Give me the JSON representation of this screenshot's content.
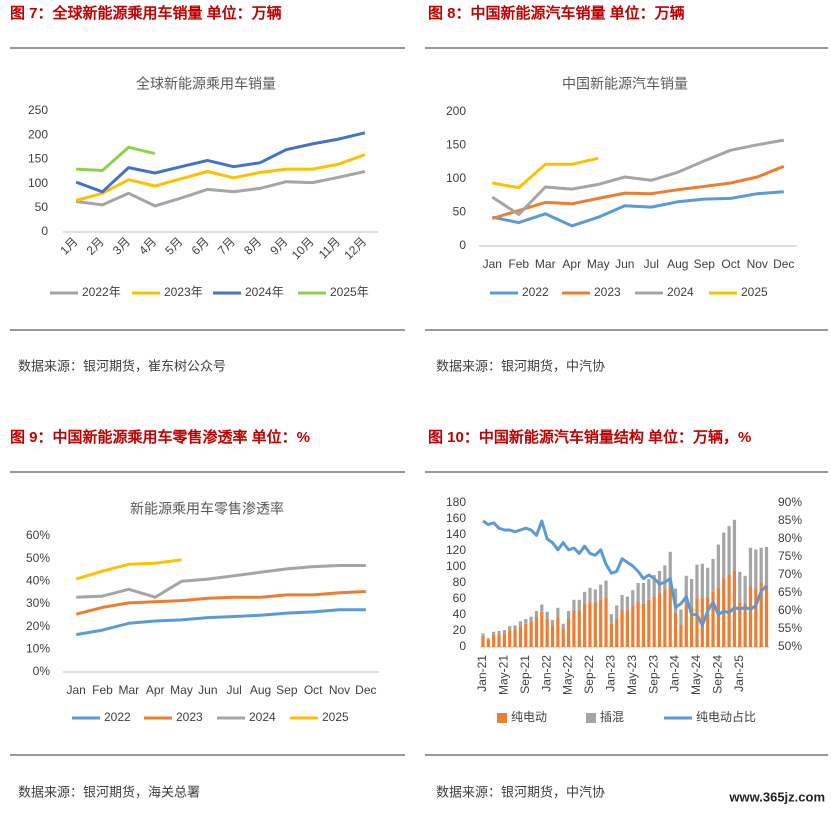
{
  "watermark": "www.365jz.com",
  "chart_data": [
    {
      "type": "line",
      "figure_title": "图 7：全球新能源乘用车销量   单位：万辆",
      "title": "全球新能源乘用车销量",
      "source": "数据来源：银河期货，崔东树公众号",
      "categories": [
        "1月",
        "2月",
        "3月",
        "4月",
        "5月",
        "6月",
        "7月",
        "8月",
        "9月",
        "10月",
        "11月",
        "12月"
      ],
      "ylim": [
        0,
        250
      ],
      "yticks": [
        0,
        50,
        100,
        150,
        200,
        250
      ],
      "grid": false,
      "series": [
        {
          "name": "2022年",
          "color": "#a5a5a5",
          "values": [
            63,
            56,
            80,
            54,
            70,
            88,
            83,
            90,
            104,
            102,
            113,
            125
          ]
        },
        {
          "name": "2023年",
          "color": "#ffc000",
          "values": [
            65,
            80,
            108,
            95,
            110,
            125,
            112,
            123,
            130,
            130,
            140,
            160
          ]
        },
        {
          "name": "2024年",
          "color": "#4472c4",
          "values": [
            103,
            83,
            133,
            122,
            135,
            148,
            135,
            143,
            170,
            182,
            192,
            205
          ]
        },
        {
          "name": "2025年",
          "color": "#8fd14f",
          "values": [
            130,
            127,
            175,
            162,
            null,
            null,
            null,
            null,
            null,
            null,
            null,
            null
          ]
        }
      ]
    },
    {
      "type": "line",
      "figure_title": "图 8：中国新能源汽车销量   单位：万辆",
      "title": "中国新能源汽车销量",
      "source": "数据来源：银河期货，中汽协",
      "categories": [
        "Jan",
        "Feb",
        "Mar",
        "Apr",
        "May",
        "Jun",
        "Jul",
        "Aug",
        "Sep",
        "Oct",
        "Nov",
        "Dec"
      ],
      "ylim": [
        0,
        200
      ],
      "yticks": [
        0,
        50,
        100,
        150,
        200
      ],
      "grid": false,
      "series": [
        {
          "name": "2022",
          "color": "#5b9bd5",
          "values": [
            43,
            35,
            48,
            30,
            43,
            60,
            58,
            66,
            70,
            71,
            78,
            81
          ]
        },
        {
          "name": "2023",
          "color": "#ed7d31",
          "values": [
            41,
            53,
            65,
            63,
            71,
            79,
            78,
            84,
            89,
            94,
            103,
            119
          ]
        },
        {
          "name": "2024",
          "color": "#a5a5a5",
          "values": [
            73,
            47,
            88,
            85,
            92,
            103,
            98,
            110,
            127,
            143,
            151,
            158
          ]
        },
        {
          "name": "2025",
          "color": "#ffc000",
          "values": [
            94,
            87,
            122,
            122,
            131,
            null,
            null,
            null,
            null,
            null,
            null,
            null
          ]
        }
      ]
    },
    {
      "type": "line",
      "figure_title": "图 9：中国新能源乘用车零售渗透率   单位：%",
      "title": "新能源乘用车零售渗透率",
      "source": "数据来源：银河期货，海关总署",
      "categories": [
        "Jan",
        "Feb",
        "Mar",
        "Apr",
        "May",
        "Jun",
        "Jul",
        "Aug",
        "Sep",
        "Oct",
        "Nov",
        "Dec"
      ],
      "ylim": [
        0,
        60
      ],
      "yticks": [
        {
          "value": 0,
          "label": "0%"
        },
        {
          "value": 10,
          "label": "10%"
        },
        {
          "value": 20,
          "label": "20%"
        },
        {
          "value": 30,
          "label": "30%"
        },
        {
          "value": 40,
          "label": "40%"
        },
        {
          "value": 50,
          "label": "50%"
        },
        {
          "value": 60,
          "label": "60%"
        }
      ],
      "grid": false,
      "series": [
        {
          "name": "2022",
          "color": "#5b9bd5",
          "values": [
            16.5,
            18.5,
            21.5,
            22.5,
            23,
            24,
            24.5,
            25,
            26,
            26.5,
            27.5,
            27.5
          ]
        },
        {
          "name": "2023",
          "color": "#ed7d31",
          "values": [
            25.5,
            28.5,
            30.5,
            31,
            31.5,
            32.5,
            33,
            33,
            34,
            34,
            35,
            35.5
          ]
        },
        {
          "name": "2024",
          "color": "#a5a5a5",
          "values": [
            33,
            33.5,
            36.5,
            33,
            40,
            41,
            42.5,
            44,
            45.5,
            46.5,
            47,
            47
          ]
        },
        {
          "name": "2025",
          "color": "#ffc000",
          "values": [
            41,
            44.5,
            47.5,
            48,
            49.5,
            null,
            null,
            null,
            null,
            null,
            null,
            null
          ]
        }
      ]
    },
    {
      "type": "combo",
      "figure_title": "图 10：中国新能源汽车销量结构   单位：万辆，%",
      "source": "数据来源：银河期货，中汽协",
      "categories": [
        "Jan-21",
        null,
        null,
        null,
        "May-21",
        null,
        null,
        null,
        "Sep-21",
        null,
        null,
        null,
        "Jan-22",
        null,
        null,
        null,
        "May-22",
        null,
        null,
        null,
        "Sep-22",
        null,
        null,
        null,
        "Jan-23",
        null,
        null,
        null,
        "May-23",
        null,
        null,
        null,
        "Sep-23",
        null,
        null,
        null,
        "Jan-24",
        null,
        null,
        null,
        "May-24",
        null,
        null,
        null,
        "Sep-24",
        null,
        null,
        null,
        "Jan-25",
        null,
        null,
        null,
        null,
        null
      ],
      "ylim": [
        0,
        180
      ],
      "yticks": [
        0,
        20,
        40,
        60,
        80,
        100,
        120,
        140,
        160,
        180
      ],
      "y2lim": [
        50,
        90
      ],
      "y2ticks": [
        {
          "value": 50,
          "label": "50%"
        },
        {
          "value": 55,
          "label": "55%"
        },
        {
          "value": 60,
          "label": "60%"
        },
        {
          "value": 65,
          "label": "65%"
        },
        {
          "value": 70,
          "label": "70%"
        },
        {
          "value": 75,
          "label": "75%"
        },
        {
          "value": 80,
          "label": "80%"
        },
        {
          "value": 85,
          "label": "85%"
        },
        {
          "value": 90,
          "label": "90%"
        }
      ],
      "series": [
        {
          "name": "纯电动",
          "kind": "bar",
          "color": "#ed7d31",
          "values": [
            14,
            9,
            15,
            16,
            17,
            21,
            22,
            25,
            29,
            32,
            38,
            44,
            35,
            27,
            37,
            23,
            35,
            45,
            45,
            54,
            56,
            56,
            59,
            62,
            29,
            36,
            47,
            46,
            52,
            57,
            54,
            59,
            63,
            67,
            72,
            84,
            43,
            28,
            55,
            50,
            61,
            61,
            62,
            69,
            74,
            86,
            90,
            96,
            56,
            55,
            77,
            73,
            80,
            78
          ]
        },
        {
          "name": "插混",
          "kind": "bar",
          "color": "#a5a5a5",
          "values": [
            3,
            2,
            4,
            4,
            4,
            5,
            5,
            7,
            6,
            6,
            7,
            9,
            9,
            7,
            12,
            6,
            10,
            14,
            14,
            15,
            18,
            16,
            19,
            21,
            12,
            16,
            18,
            17,
            19,
            23,
            26,
            26,
            27,
            28,
            30,
            35,
            30,
            19,
            34,
            35,
            42,
            43,
            37,
            41,
            54,
            57,
            61,
            63,
            38,
            34,
            47,
            49,
            44,
            47
          ]
        },
        {
          "name": "纯电动占比",
          "kind": "line",
          "axis": "y2",
          "color": "#5b9bd5",
          "values": [
            85,
            84,
            84.5,
            83,
            82.5,
            82.5,
            82,
            82.5,
            83,
            82.5,
            81,
            85,
            80,
            79,
            77,
            79,
            77,
            77.5,
            76,
            78,
            76,
            75.5,
            77,
            73,
            70.5,
            71,
            74.5,
            73.5,
            72.5,
            71,
            69,
            70,
            69,
            67.5,
            68,
            69,
            61,
            62,
            64,
            59,
            59,
            56,
            60,
            62.5,
            59,
            60,
            59.5,
            61,
            60.5,
            61,
            60.5,
            61.5,
            65.5,
            67
          ]
        }
      ]
    }
  ]
}
